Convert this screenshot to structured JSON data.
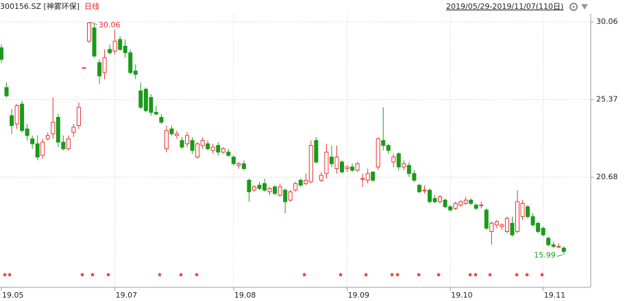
{
  "chart_data": {
    "type": "candlestick",
    "title": "300156.SZ [神雾环保]",
    "period": "日线",
    "range": "2019/05/29-2019/11/07(110日)",
    "up_color": "#e8312f",
    "down_color": "#1a9a1a",
    "grid": true,
    "ylim": [
      14.03,
      30.56
    ],
    "yticks": [
      30.06,
      25.37,
      20.68
    ],
    "categories": [
      "19.05",
      null,
      null,
      null,
      null,
      null,
      null,
      null,
      null,
      null,
      null,
      null,
      null,
      null,
      null,
      null,
      null,
      null,
      null,
      null,
      null,
      null,
      "19.07",
      null,
      null,
      null,
      null,
      null,
      null,
      null,
      null,
      null,
      null,
      null,
      null,
      null,
      null,
      null,
      null,
      null,
      null,
      null,
      null,
      null,
      null,
      "19.08",
      null,
      null,
      null,
      null,
      null,
      null,
      null,
      null,
      null,
      null,
      null,
      null,
      null,
      null,
      null,
      null,
      null,
      null,
      null,
      null,
      null,
      "19.09",
      null,
      null,
      null,
      null,
      null,
      null,
      null,
      null,
      null,
      null,
      null,
      null,
      null,
      null,
      null,
      null,
      null,
      null,
      null,
      "19.10",
      null,
      null,
      null,
      null,
      null,
      null,
      null,
      null,
      null,
      null,
      null,
      null,
      null,
      null,
      null,
      null,
      null,
      "19.11",
      null,
      null,
      null,
      null
    ],
    "open": [
      28.5,
      26.1,
      24.4,
      23.9,
      25.1,
      23.6,
      23.0,
      22.7,
      22.0,
      23.0,
      23.3,
      24.3,
      22.8,
      22.4,
      23.4,
      23.8,
      27.3,
      28.9,
      29.7,
      27.6,
      27.0,
      28.4,
      28.3,
      29.0,
      28.6,
      28.2,
      27.1,
      25.9,
      26.0,
      25.5,
      24.6,
      24.3,
      22.4,
      23.6,
      23.2,
      22.9,
      22.7,
      22.9,
      21.9,
      22.6,
      22.7,
      22.3,
      22.6,
      22.2,
      22.2,
      21.9,
      21.4,
      21.5,
      20.5,
      19.9,
      20.2,
      20.3,
      19.8,
      20.1,
      19.6,
      19.9,
      19.3,
      19.9,
      20.5,
      20.3,
      20.4,
      22.9,
      20.5,
      20.9,
      21.9,
      21.2,
      21.6,
      21.2,
      21.3,
      21.1,
      20.6,
      20.5,
      21.0,
      21.3,
      22.9,
      22.6,
      21.6,
      22.1,
      21.3,
      21.4,
      20.9,
      20.2,
      19.9,
      19.9,
      19.4,
      19.2,
      19.3,
      18.9,
      18.8,
      19.0,
      19.1,
      19.3,
      19.0,
      19.0,
      18.7,
      17.4,
      17.8,
      17.7,
      17.4,
      17.9,
      17.4,
      18.3,
      18.9,
      18.3,
      17.9,
      17.6,
      17.0,
      16.6,
      16.5,
      16.4
    ],
    "high": [
      28.7,
      26.4,
      24.8,
      25.1,
      25.3,
      23.9,
      23.2,
      23.2,
      23.0,
      23.4,
      25.5,
      24.5,
      23.2,
      23.2,
      23.9,
      25.2,
      27.3,
      30.06,
      30.0,
      27.8,
      28.4,
      28.7,
      29.6,
      29.2,
      29.0,
      28.4,
      27.5,
      26.4,
      26.1,
      25.7,
      25.0,
      24.5,
      23.8,
      23.8,
      23.5,
      23.1,
      23.4,
      23.1,
      22.8,
      23.1,
      22.9,
      22.7,
      22.8,
      22.5,
      22.4,
      22.0,
      21.6,
      21.7,
      20.6,
      20.2,
      20.4,
      20.6,
      20.1,
      20.2,
      20.3,
      20.0,
      19.9,
      20.4,
      20.6,
      20.9,
      22.9,
      23.1,
      21.0,
      22.7,
      22.6,
      22.6,
      21.7,
      21.4,
      21.5,
      21.6,
      20.9,
      21.2,
      21.0,
      23.1,
      24.9,
      22.7,
      22.1,
      22.2,
      21.7,
      21.6,
      21.1,
      20.3,
      20.2,
      20.0,
      19.6,
      19.6,
      19.4,
      19.0,
      19.2,
      19.3,
      19.5,
      19.4,
      19.1,
      19.2,
      18.8,
      18.0,
      18.1,
      17.9,
      18.3,
      18.3,
      19.9,
      19.3,
      19.0,
      18.5,
      18.0,
      17.7,
      17.1,
      16.8,
      16.7,
      16.5
    ],
    "low": [
      27.6,
      25.5,
      23.3,
      23.6,
      23.4,
      22.9,
      22.4,
      21.7,
      21.8,
      22.9,
      23.0,
      22.5,
      22.3,
      22.3,
      23.1,
      23.6,
      27.3,
      28.8,
      27.9,
      26.3,
      26.6,
      28.1,
      28.1,
      28.3,
      27.9,
      26.9,
      26.6,
      24.8,
      24.6,
      24.4,
      24.4,
      23.9,
      22.2,
      23.2,
      23.0,
      22.4,
      22.5,
      22.1,
      21.8,
      22.4,
      22.3,
      22.1,
      22.0,
      22.1,
      21.9,
      21.4,
      21.2,
      21.1,
      19.2,
      19.8,
      19.9,
      19.8,
      19.6,
      19.6,
      19.5,
      18.5,
      19.2,
      19.8,
      20.1,
      20.2,
      20.3,
      21.5,
      20.4,
      20.6,
      21.3,
      20.9,
      20.9,
      21.0,
      21.0,
      21.0,
      20.1,
      20.3,
      20.4,
      21.1,
      22.3,
      22.1,
      21.3,
      21.1,
      21.1,
      20.7,
      20.4,
      19.7,
      19.7,
      19.1,
      19.1,
      19.1,
      18.8,
      18.6,
      18.7,
      18.9,
      19.0,
      19.0,
      18.7,
      18.8,
      17.5,
      16.6,
      17.6,
      17.5,
      17.3,
      17.1,
      17.3,
      18.1,
      18.2,
      17.7,
      17.3,
      17.1,
      16.5,
      16.4,
      16.4,
      15.99
    ],
    "close": [
      27.8,
      25.6,
      23.8,
      25.0,
      23.5,
      23.2,
      22.7,
      21.9,
      22.8,
      23.2,
      24.0,
      22.8,
      22.4,
      23.0,
      23.7,
      24.9,
      27.3,
      30.0,
      28.0,
      26.8,
      27.9,
      28.2,
      28.9,
      28.4,
      28.2,
      27.0,
      26.9,
      24.9,
      24.7,
      24.6,
      24.5,
      24.0,
      23.5,
      23.3,
      23.3,
      22.5,
      23.2,
      22.3,
      22.7,
      22.9,
      22.4,
      22.5,
      22.2,
      22.4,
      22.0,
      21.5,
      21.5,
      21.2,
      19.8,
      20.1,
      20.0,
      19.9,
      20.0,
      19.7,
      20.1,
      19.2,
      19.8,
      20.3,
      20.2,
      20.5,
      22.6,
      21.6,
      20.8,
      22.2,
      21.5,
      21.9,
      21.0,
      21.3,
      21.1,
      21.5,
      20.6,
      20.9,
      20.5,
      23.0,
      22.6,
      22.3,
      21.9,
      21.3,
      21.5,
      20.9,
      20.5,
      19.8,
      19.9,
      19.2,
      19.2,
      19.5,
      18.9,
      18.7,
      19.1,
      19.2,
      19.3,
      19.1,
      18.8,
      19.0,
      17.6,
      17.9,
      18.0,
      17.8,
      18.2,
      17.2,
      19.2,
      19.1,
      18.3,
      17.8,
      17.4,
      17.2,
      16.6,
      16.5,
      16.5,
      16.2
    ]
  }
}
